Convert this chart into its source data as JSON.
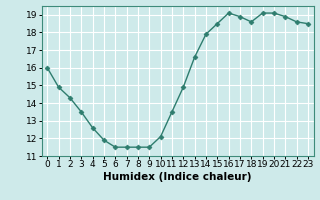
{
  "x": [
    0,
    1,
    2,
    3,
    4,
    5,
    6,
    7,
    8,
    9,
    10,
    11,
    12,
    13,
    14,
    15,
    16,
    17,
    18,
    19,
    20,
    21,
    22,
    23
  ],
  "y": [
    16.0,
    14.9,
    14.3,
    13.5,
    12.6,
    11.9,
    11.5,
    11.5,
    11.5,
    11.5,
    12.1,
    13.5,
    14.9,
    16.6,
    17.9,
    18.5,
    19.1,
    18.9,
    18.6,
    19.1,
    19.1,
    18.9,
    18.6,
    18.5
  ],
  "line_color": "#2e7d6e",
  "marker": "D",
  "marker_size": 2.5,
  "bg_color": "#ceeaea",
  "grid_color": "#ffffff",
  "xlabel": "Humidex (Indice chaleur)",
  "xlim": [
    -0.5,
    23.5
  ],
  "ylim": [
    11,
    19.5
  ],
  "yticks": [
    11,
    12,
    13,
    14,
    15,
    16,
    17,
    18,
    19
  ],
  "xticks": [
    0,
    1,
    2,
    3,
    4,
    5,
    6,
    7,
    8,
    9,
    10,
    11,
    12,
    13,
    14,
    15,
    16,
    17,
    18,
    19,
    20,
    21,
    22,
    23
  ],
  "tick_fontsize": 6.5,
  "xlabel_fontsize": 7.5,
  "line_width": 1.0,
  "spine_color": "#3d8b7a"
}
